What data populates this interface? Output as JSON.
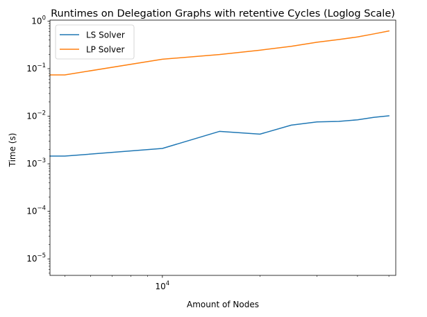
{
  "chart_data": {
    "type": "line",
    "title": "Runtimes on Delegation Graphs with retentive Cycles (Loglog Scale)",
    "xlabel": "Amount of Nodes",
    "ylabel": "Time (s)",
    "xscale": "log",
    "yscale": "log",
    "xlim": [
      4500,
      52500
    ],
    "ylim": [
      4.5e-06,
      1.05
    ],
    "x_ticks": [
      {
        "value": 10000,
        "base": "10",
        "exp": "4"
      }
    ],
    "y_ticks": [
      {
        "value": 1e-05,
        "base": "10",
        "exp": "−5"
      },
      {
        "value": 0.0001,
        "base": "10",
        "exp": "−4"
      },
      {
        "value": 0.001,
        "base": "10",
        "exp": "−3"
      },
      {
        "value": 0.01,
        "base": "10",
        "exp": "−2"
      },
      {
        "value": 0.1,
        "base": "10",
        "exp": "−1"
      },
      {
        "value": 1,
        "base": "10",
        "exp": "0"
      }
    ],
    "grid": false,
    "legend_position": "top-left",
    "series": [
      {
        "name": "LS Solver",
        "color": "#1f77b4",
        "x": [
          4500,
          5000,
          10000,
          15000,
          20000,
          25000,
          30000,
          35000,
          40000,
          45000,
          50000
        ],
        "y": [
          0.00145,
          0.00145,
          0.0021,
          0.0048,
          0.0042,
          0.0065,
          0.0076,
          0.0078,
          0.0084,
          0.0095,
          0.0102
        ]
      },
      {
        "name": "LP Solver",
        "color": "#ff7f0e",
        "x": [
          4500,
          5000,
          10000,
          15000,
          20000,
          25000,
          30000,
          35000,
          40000,
          45000,
          50000
        ],
        "y": [
          0.074,
          0.074,
          0.158,
          0.198,
          0.245,
          0.295,
          0.36,
          0.41,
          0.465,
          0.54,
          0.62
        ]
      }
    ]
  }
}
